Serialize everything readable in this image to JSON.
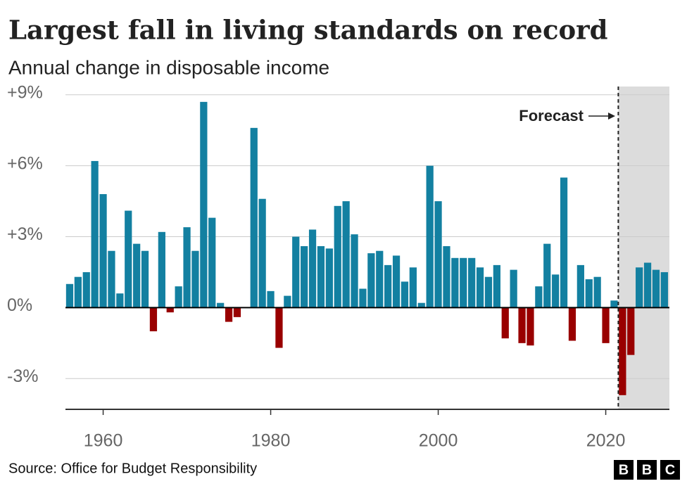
{
  "chart_data": {
    "type": "bar",
    "title": "Largest fall in living standards on record",
    "subtitle": "Annual change in disposable income",
    "x": [
      1956,
      1957,
      1958,
      1959,
      1960,
      1961,
      1962,
      1963,
      1964,
      1965,
      1966,
      1967,
      1968,
      1969,
      1970,
      1971,
      1972,
      1973,
      1974,
      1975,
      1976,
      1977,
      1978,
      1979,
      1980,
      1981,
      1982,
      1983,
      1984,
      1985,
      1986,
      1987,
      1988,
      1989,
      1990,
      1991,
      1992,
      1993,
      1994,
      1995,
      1996,
      1997,
      1998,
      1999,
      2000,
      2001,
      2002,
      2003,
      2004,
      2005,
      2006,
      2007,
      2008,
      2009,
      2010,
      2011,
      2012,
      2013,
      2014,
      2015,
      2016,
      2017,
      2018,
      2019,
      2020,
      2021,
      2022,
      2023,
      2024,
      2025,
      2026,
      2027
    ],
    "values": [
      1.0,
      1.3,
      1.5,
      6.2,
      4.8,
      2.4,
      0.6,
      4.1,
      2.7,
      2.4,
      -1.0,
      3.2,
      -0.2,
      0.9,
      3.4,
      2.4,
      8.7,
      3.8,
      0.2,
      -0.6,
      -0.4,
      0,
      7.6,
      4.6,
      0.7,
      -1.7,
      0.5,
      3.0,
      2.6,
      3.3,
      2.6,
      2.5,
      4.3,
      4.5,
      3.1,
      0.8,
      2.3,
      2.4,
      1.8,
      2.2,
      1.1,
      1.7,
      0.2,
      6.0,
      4.5,
      2.6,
      2.1,
      2.1,
      2.1,
      1.7,
      1.3,
      1.8,
      -1.3,
      1.6,
      -1.5,
      -1.6,
      0.9,
      2.7,
      1.4,
      5.5,
      -1.4,
      1.8,
      1.2,
      1.3,
      -1.5,
      0.3,
      -3.7,
      -2.0,
      1.7,
      1.9,
      1.6,
      1.5
    ],
    "positive_color": "#1380a1",
    "negative_color": "#990000",
    "xlim": [
      1955.5,
      2027.6
    ],
    "xticks": [
      1960,
      1980,
      2000,
      2020
    ],
    "ylim": [
      -4.3,
      9.35
    ],
    "yticks": [
      {
        "value": 9,
        "label": "+9%"
      },
      {
        "value": 6,
        "label": "+6%"
      },
      {
        "value": 3,
        "label": "+3%"
      },
      {
        "value": 0,
        "label": "0%"
      },
      {
        "value": -3,
        "label": "-3%"
      }
    ],
    "grid": true,
    "forecast_label": "Forecast",
    "forecast_from": 2021.5,
    "source": "Source: Office for Budget Responsibility",
    "logo": [
      "B",
      "B",
      "C"
    ]
  }
}
